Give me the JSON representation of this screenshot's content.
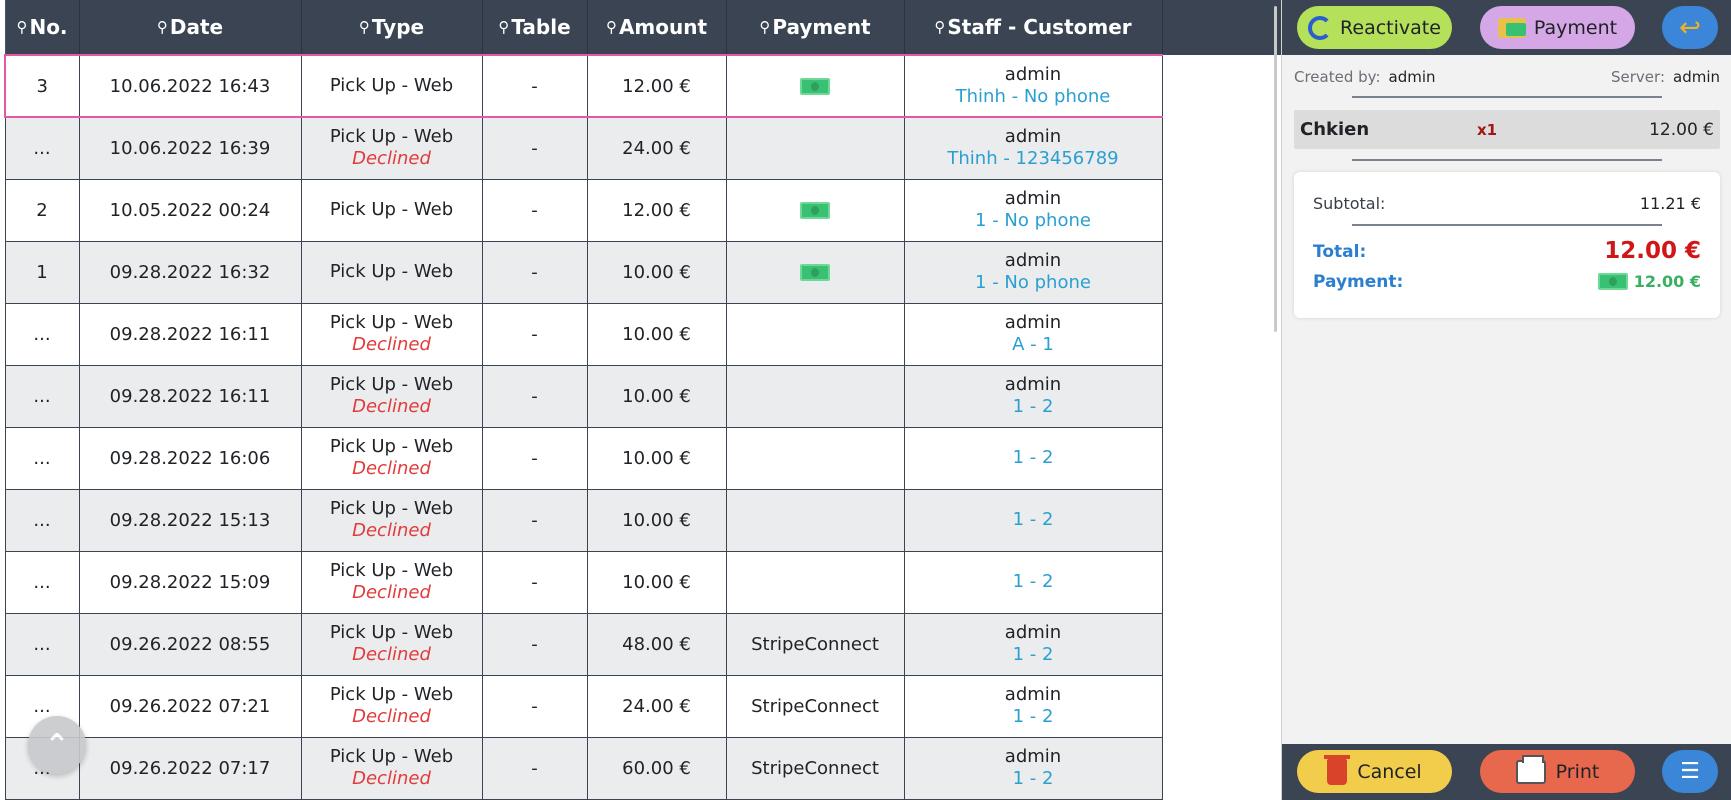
{
  "table": {
    "headers": [
      "No.",
      "Date",
      "Type",
      "Table",
      "Amount",
      "Payment",
      "Staff - Customer"
    ],
    "rows": [
      {
        "no": "3",
        "date": "10.06.2022 16:43",
        "type": "Pick Up - Web",
        "status": "",
        "table": "-",
        "amount": "12.00 €",
        "payment": "cash",
        "staff": "admin",
        "customer": "Thinh - No phone",
        "selected": true
      },
      {
        "no": "...",
        "date": "10.06.2022 16:39",
        "type": "Pick Up - Web",
        "status": "Declined",
        "table": "-",
        "amount": "24.00 €",
        "payment": "",
        "staff": "admin",
        "customer": "Thinh - 123456789",
        "selected": false
      },
      {
        "no": "2",
        "date": "10.05.2022 00:24",
        "type": "Pick Up - Web",
        "status": "",
        "table": "-",
        "amount": "12.00 €",
        "payment": "cash",
        "staff": "admin",
        "customer": "1 - No phone",
        "selected": false
      },
      {
        "no": "1",
        "date": "09.28.2022 16:32",
        "type": "Pick Up - Web",
        "status": "",
        "table": "-",
        "amount": "10.00 €",
        "payment": "cash",
        "staff": "admin",
        "customer": "1 - No phone",
        "selected": false
      },
      {
        "no": "...",
        "date": "09.28.2022 16:11",
        "type": "Pick Up - Web",
        "status": "Declined",
        "table": "-",
        "amount": "10.00 €",
        "payment": "",
        "staff": "admin",
        "customer": "A - 1",
        "selected": false
      },
      {
        "no": "...",
        "date": "09.28.2022 16:11",
        "type": "Pick Up - Web",
        "status": "Declined",
        "table": "-",
        "amount": "10.00 €",
        "payment": "",
        "staff": "admin",
        "customer": "1 - 2",
        "selected": false
      },
      {
        "no": "...",
        "date": "09.28.2022 16:06",
        "type": "Pick Up - Web",
        "status": "Declined",
        "table": "-",
        "amount": "10.00 €",
        "payment": "",
        "staff": "",
        "customer": "1 - 2",
        "selected": false
      },
      {
        "no": "...",
        "date": "09.28.2022 15:13",
        "type": "Pick Up - Web",
        "status": "Declined",
        "table": "-",
        "amount": "10.00 €",
        "payment": "",
        "staff": "",
        "customer": "1 - 2",
        "selected": false
      },
      {
        "no": "...",
        "date": "09.28.2022 15:09",
        "type": "Pick Up - Web",
        "status": "Declined",
        "table": "-",
        "amount": "10.00 €",
        "payment": "",
        "staff": "",
        "customer": "1 - 2",
        "selected": false
      },
      {
        "no": "...",
        "date": "09.26.2022 08:55",
        "type": "Pick Up - Web",
        "status": "Declined",
        "table": "-",
        "amount": "48.00 €",
        "payment": "StripeConnect",
        "staff": "admin",
        "customer": "1 - 2",
        "selected": false
      },
      {
        "no": "...",
        "date": "09.26.2022 07:21",
        "type": "Pick Up - Web",
        "status": "Declined",
        "table": "-",
        "amount": "24.00 €",
        "payment": "StripeConnect",
        "staff": "admin",
        "customer": "1 - 2",
        "selected": false
      },
      {
        "no": "...",
        "date": "09.26.2022 07:17",
        "type": "Pick Up - Web",
        "status": "Declined",
        "table": "-",
        "amount": "60.00 €",
        "payment": "StripeConnect",
        "staff": "admin",
        "customer": "1 - 2",
        "selected": false
      }
    ]
  },
  "panel": {
    "reactivate_label": "Reactivate",
    "payment_label": "Payment",
    "created_by_label": "Created by:",
    "created_by_value": "admin",
    "server_label": "Server:",
    "server_value": "admin",
    "item": {
      "name": "Chkien",
      "qty": "x1",
      "price": "12.00 €"
    },
    "subtotal_label": "Subtotal:",
    "subtotal_value": "11.21 €",
    "total_label": "Total:",
    "total_value": "12.00 €",
    "payment_row_label": "Payment:",
    "payment_row_value": "12.00 €",
    "cancel_label": "Cancel",
    "print_label": "Print"
  },
  "colors": {
    "header_bg": "#3a4453",
    "selected_border": "#e25aa3",
    "declined": "#e23b3b",
    "customer": "#2a9fd0",
    "total": "#d01616",
    "cash": "#38c172"
  },
  "icons": {
    "header_search": "magnifier-icon",
    "payment_cash": "cash-icon",
    "scroll_top": "double-chevron-up-icon",
    "back": "back-arrow-icon",
    "list": "list-icon"
  }
}
